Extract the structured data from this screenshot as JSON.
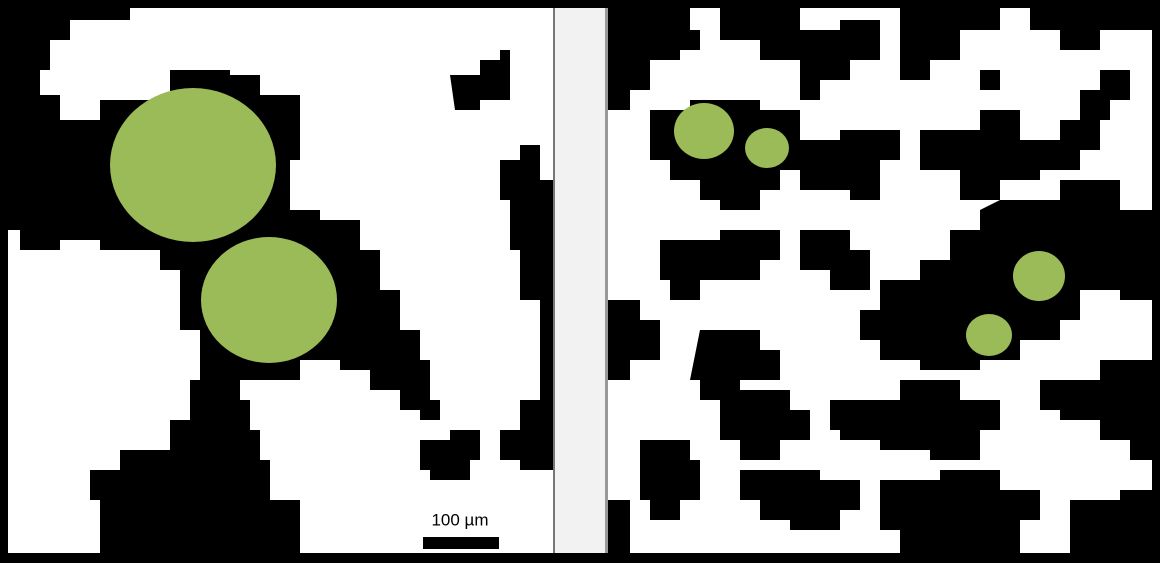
{
  "scale_bar": {
    "label": "100 µm"
  }
}
